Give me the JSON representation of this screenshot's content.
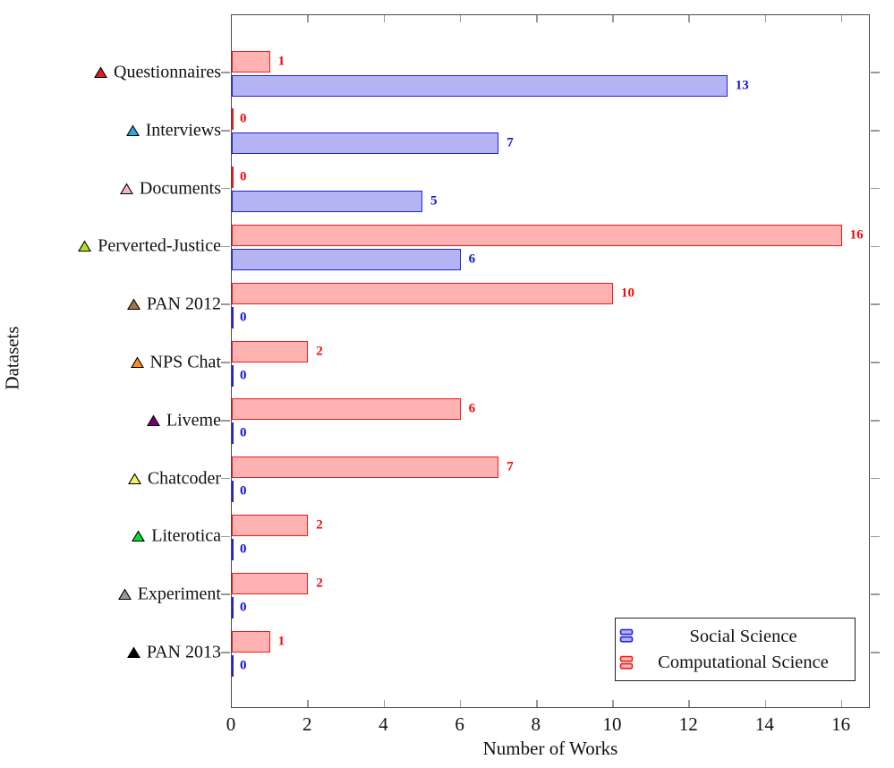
{
  "figure": {
    "xlabel": "Number of Works",
    "ylabel": "Datasets"
  },
  "legend": {
    "items": [
      "Social Science",
      "Computational Science"
    ]
  },
  "chart_data": {
    "type": "bar",
    "orientation": "horizontal",
    "title": "",
    "xlabel": "Number of Works",
    "ylabel": "Datasets",
    "xlim": [
      0,
      16.76
    ],
    "xticks": [
      0,
      2,
      4,
      6,
      8,
      10,
      12,
      14,
      16
    ],
    "grid": false,
    "legend_position": "bottom-right",
    "categories": [
      "Questionnaires",
      "Interviews",
      "Documents",
      "Perverted-Justice",
      "PAN 2012",
      "NPS Chat",
      "Liveme",
      "Chatcoder",
      "Literotica",
      "Experiment",
      "PAN 2013"
    ],
    "category_markers": [
      {
        "icon": "triangle-icon",
        "fill": "#e01b24"
      },
      {
        "icon": "triangle-icon",
        "fill": "#33a6dd"
      },
      {
        "icon": "triangle-icon",
        "fill": "#f0b9c4"
      },
      {
        "icon": "triangle-icon",
        "fill": "#b2e022"
      },
      {
        "icon": "triangle-icon",
        "fill": "#a6763f"
      },
      {
        "icon": "triangle-icon",
        "fill": "#ff8c1a"
      },
      {
        "icon": "triangle-icon",
        "fill": "#730073"
      },
      {
        "icon": "triangle-icon",
        "fill": "#f5ef66"
      },
      {
        "icon": "triangle-icon",
        "fill": "#00e033"
      },
      {
        "icon": "triangle-icon",
        "fill": "#999999"
      },
      {
        "icon": "triangle-icon",
        "fill": "#000000"
      }
    ],
    "series": [
      {
        "name": "Social Science",
        "stroke": "#2222dd",
        "fill": "#b4b4f4",
        "label_color": "#1414cc",
        "values": [
          13,
          7,
          5,
          6,
          0,
          0,
          0,
          0,
          0,
          0,
          0
        ]
      },
      {
        "name": "Computational Science",
        "stroke": "#f01a1a",
        "fill": "#ffb2b2",
        "label_color": "#ee0d0d",
        "values": [
          1,
          0,
          0,
          16,
          10,
          2,
          6,
          7,
          2,
          2,
          1
        ]
      }
    ]
  }
}
